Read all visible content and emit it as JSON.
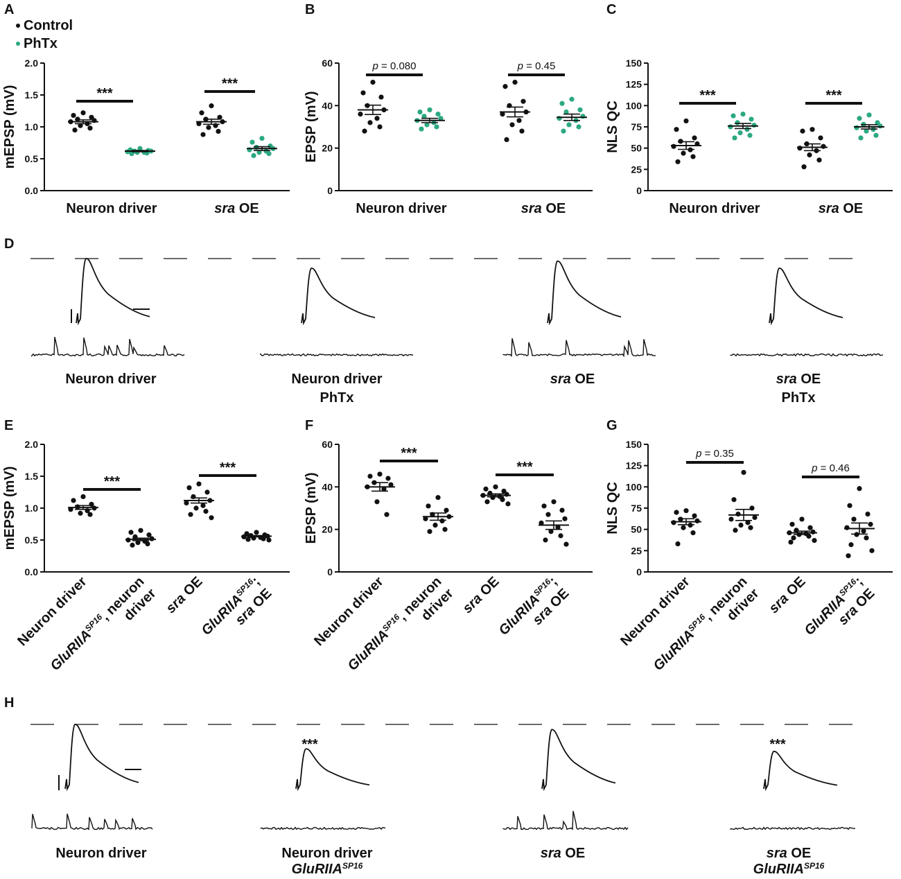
{
  "legend": {
    "control_label": "Control",
    "phtx_label": "PhTx",
    "control_color": "#111111",
    "phtx_color": "#2ba882"
  },
  "chart_data": [
    {
      "panel": "A",
      "type": "scatter",
      "ylabel": "mEPSP (mV)",
      "ylim": [
        0,
        2.0
      ],
      "yticks": [
        "0.0",
        "0.5",
        "1.0",
        "1.5",
        "2.0"
      ],
      "groups": [
        {
          "label": "Neuron driver",
          "label_italic_part": "",
          "series": [
            {
              "name": "Control",
              "mean": 1.08,
              "sem": 0.03,
              "values": [
                1.22,
                1.18,
                1.15,
                1.12,
                1.1,
                1.08,
                1.05,
                1.02,
                0.98,
                0.95
              ]
            },
            {
              "name": "PhTx",
              "mean": 0.62,
              "sem": 0.01,
              "values": [
                0.66,
                0.64,
                0.63,
                0.62,
                0.62,
                0.61,
                0.6,
                0.6,
                0.59,
                0.58
              ]
            }
          ],
          "sig": "***"
        },
        {
          "label": " OE",
          "label_italic_part": "sra",
          "series": [
            {
              "name": "Control",
              "mean": 1.08,
              "sem": 0.04,
              "values": [
                1.33,
                1.22,
                1.15,
                1.12,
                1.08,
                1.05,
                1.02,
                0.99,
                0.93,
                0.88
              ]
            },
            {
              "name": "PhTx",
              "mean": 0.66,
              "sem": 0.03,
              "values": [
                0.82,
                0.76,
                0.7,
                0.68,
                0.66,
                0.64,
                0.62,
                0.6,
                0.58,
                0.55
              ]
            }
          ],
          "sig": "***"
        }
      ]
    },
    {
      "panel": "B",
      "type": "scatter",
      "ylabel": "EPSP (mV)",
      "ylim": [
        0,
        60
      ],
      "yticks": [
        "0",
        "20",
        "40",
        "60"
      ],
      "groups": [
        {
          "label": "Neuron driver",
          "label_italic_part": "",
          "series": [
            {
              "name": "Control",
              "mean": 38,
              "sem": 2.2,
              "values": [
                51,
                46,
                44,
                40,
                38,
                36,
                34,
                32,
                30,
                28
              ]
            },
            {
              "name": "PhTx",
              "mean": 33,
              "sem": 1.0,
              "values": [
                38,
                37,
                36,
                35,
                34,
                33,
                32,
                31,
                30,
                29
              ]
            }
          ],
          "sig": "p = 0.080"
        },
        {
          "label": " OE",
          "label_italic_part": "sra",
          "series": [
            {
              "name": "Control",
              "mean": 37,
              "sem": 2.3,
              "values": [
                51,
                49,
                42,
                40,
                37,
                36,
                33,
                31,
                28,
                24
              ]
            },
            {
              "name": "PhTx",
              "mean": 34.5,
              "sem": 1.5,
              "values": [
                43,
                41,
                38,
                37,
                35,
                34,
                33,
                31,
                30,
                28
              ]
            }
          ],
          "sig": "p = 0.45"
        }
      ]
    },
    {
      "panel": "C",
      "type": "scatter",
      "ylabel": "NLS QC",
      "ylim": [
        0,
        150
      ],
      "yticks": [
        "0",
        "25",
        "50",
        "75",
        "100",
        "125",
        "150"
      ],
      "groups": [
        {
          "label": "Neuron driver",
          "label_italic_part": "",
          "series": [
            {
              "name": "Control",
              "mean": 53,
              "sem": 4.5,
              "values": [
                82,
                72,
                62,
                58,
                55,
                52,
                48,
                44,
                40,
                34
              ]
            },
            {
              "name": "PhTx",
              "mean": 76,
              "sem": 3.0,
              "values": [
                90,
                88,
                84,
                80,
                77,
                75,
                72,
                68,
                65,
                62
              ]
            }
          ],
          "sig": "***"
        },
        {
          "label": " OE",
          "label_italic_part": "sra",
          "series": [
            {
              "name": "Control",
              "mean": 51,
              "sem": 4.0,
              "values": [
                72,
                70,
                62,
                55,
                52,
                50,
                47,
                42,
                36,
                28
              ]
            },
            {
              "name": "PhTx",
              "mean": 75,
              "sem": 2.5,
              "values": [
                89,
                85,
                80,
                78,
                76,
                74,
                72,
                70,
                65,
                62
              ]
            }
          ],
          "sig": "***"
        }
      ]
    },
    {
      "panel": "E",
      "type": "scatter",
      "ylabel": "mEPSP (mV)",
      "ylim": [
        0,
        2.0
      ],
      "yticks": [
        "0.0",
        "0.5",
        "1.0",
        "1.5",
        "2.0"
      ],
      "columns": [
        {
          "lines": [
            "Neuron driver"
          ],
          "values": [
            1.18,
            1.12,
            1.06,
            1.02,
            1.0,
            0.98,
            0.96,
            0.92,
            0.9
          ],
          "mean": 1.01,
          "sem": 0.03
        },
        {
          "lines": [
            "GluRIIA",
            "SP16",
            ", neuron",
            "driver"
          ],
          "values": [
            0.65,
            0.62,
            0.58,
            0.55,
            0.52,
            0.5,
            0.48,
            0.46,
            0.44,
            0.42
          ],
          "mean": 0.51,
          "sem": 0.02
        },
        {
          "lines": [
            "sra",
            " OE"
          ],
          "values": [
            1.38,
            1.32,
            1.25,
            1.18,
            1.12,
            1.08,
            1.04,
            1.0,
            0.95,
            0.9,
            0.85
          ],
          "mean": 1.12,
          "sem": 0.04
        },
        {
          "lines": [
            "GluRIIA",
            "SP16",
            ";",
            "sra",
            " OE"
          ],
          "values": [
            0.62,
            0.6,
            0.58,
            0.57,
            0.56,
            0.55,
            0.54,
            0.53,
            0.52,
            0.51,
            0.5
          ],
          "mean": 0.56,
          "sem": 0.01
        }
      ],
      "sig": [
        {
          "from": 0,
          "to": 1,
          "label": "***"
        },
        {
          "from": 2,
          "to": 3,
          "label": "***"
        }
      ]
    },
    {
      "panel": "F",
      "type": "scatter",
      "ylabel": "EPSP (mV)",
      "ylim": [
        0,
        60
      ],
      "yticks": [
        "0",
        "20",
        "40",
        "60"
      ],
      "columns": [
        {
          "lines": [
            "Neuron driver"
          ],
          "values": [
            46,
            45,
            44,
            42,
            41,
            40,
            39,
            33,
            27
          ],
          "mean": 40,
          "sem": 2.0
        },
        {
          "lines": [
            "GluRIIA",
            "SP16",
            ", neuron",
            "driver"
          ],
          "values": [
            35,
            31,
            29,
            27,
            26,
            25,
            24,
            22,
            20,
            19
          ],
          "mean": 26,
          "sem": 1.7
        },
        {
          "lines": [
            "sra",
            " OE"
          ],
          "values": [
            40,
            39,
            38,
            37,
            36.5,
            36,
            35.5,
            35,
            34,
            33,
            32
          ],
          "mean": 36,
          "sem": 0.7
        },
        {
          "lines": [
            "GluRIIA",
            "SP16",
            ";",
            "sra",
            " OE"
          ],
          "values": [
            33,
            31,
            29,
            27,
            25,
            23,
            21,
            19,
            17,
            15,
            13
          ],
          "mean": 22,
          "sem": 2.0
        }
      ],
      "sig": [
        {
          "from": 0,
          "to": 1,
          "label": "***"
        },
        {
          "from": 2,
          "to": 3,
          "label": "***"
        }
      ]
    },
    {
      "panel": "G",
      "type": "scatter",
      "ylabel": "NLS QC",
      "ylim": [
        0,
        150
      ],
      "yticks": [
        "0",
        "25",
        "50",
        "75",
        "100",
        "125",
        "150"
      ],
      "columns": [
        {
          "lines": [
            "Neuron driver"
          ],
          "values": [
            72,
            70,
            66,
            62,
            60,
            58,
            55,
            52,
            46,
            33
          ],
          "mean": 59,
          "sem": 3.5
        },
        {
          "lines": [
            "GluRIIA",
            "SP16",
            ", neuron",
            "driver"
          ],
          "values": [
            117,
            85,
            75,
            68,
            64,
            62,
            58,
            55,
            52,
            49
          ],
          "mean": 67,
          "sem": 6.5
        },
        {
          "lines": [
            "sra",
            " OE"
          ],
          "values": [
            62,
            56,
            52,
            49,
            47,
            46,
            45,
            44,
            42,
            40,
            37,
            35
          ],
          "mean": 46,
          "sem": 2.0
        },
        {
          "lines": [
            "GluRIIA",
            "SP16",
            ";",
            "sra",
            " OE"
          ],
          "values": [
            98,
            78,
            68,
            62,
            56,
            52,
            48,
            44,
            40,
            32,
            25,
            19
          ],
          "mean": 51,
          "sem": 6.5
        }
      ],
      "sig": [
        {
          "from": 0,
          "to": 1,
          "label": "p = 0.35"
        },
        {
          "from": 2,
          "to": 3,
          "label": "p = 0.46"
        }
      ]
    }
  ],
  "panel_letters": {
    "A": "A",
    "B": "B",
    "C": "C",
    "D": "D",
    "E": "E",
    "F": "F",
    "G": "G",
    "H": "H"
  },
  "traces_D": [
    {
      "line1": "Neuron driver",
      "line1_italic": "",
      "line2": "",
      "amp": 1.0,
      "minis": true
    },
    {
      "line1": "Neuron driver",
      "line1_italic": "",
      "line2": "PhTx",
      "amp": 0.85,
      "minis": false
    },
    {
      "line1": "  OE",
      "line1_italic": "sra",
      "line2": "",
      "amp": 0.96,
      "minis": true
    },
    {
      "line1": " OE",
      "line1_italic": "sra",
      "line2": "PhTx",
      "amp": 0.85,
      "minis": false
    }
  ],
  "traces_H": [
    {
      "line1": "Neuron driver",
      "line1_italic": "",
      "line2": "",
      "line2_sup": "",
      "amp": 1.0,
      "minis": true,
      "sig": ""
    },
    {
      "line1": "Neuron driver",
      "line1_italic": "",
      "line2": "GluRIIA",
      "line2_sup": "SP16",
      "amp": 0.62,
      "minis": false,
      "sig": "***"
    },
    {
      "line1": " OE",
      "line1_italic": "sra",
      "line2": "",
      "line2_sup": "",
      "amp": 0.92,
      "minis": true,
      "sig": ""
    },
    {
      "line1": " OE",
      "line1_italic": "sra",
      "line2": "GluRIIA",
      "line2_sup": "SP16",
      "amp": 0.58,
      "minis": false,
      "sig": "***"
    }
  ]
}
